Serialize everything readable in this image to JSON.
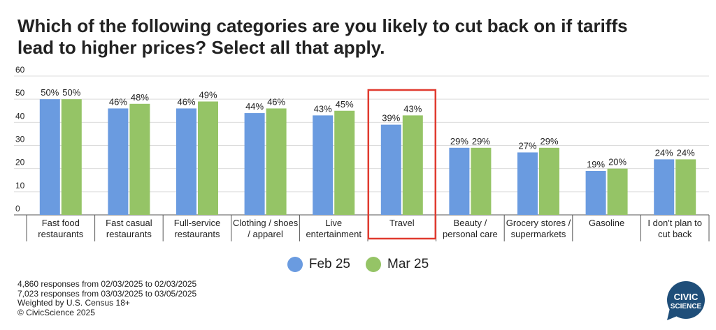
{
  "title": "Which of the following categories are you likely to cut back on if tariffs lead to higher prices? Select all that apply.",
  "chart_data": {
    "type": "bar",
    "categories": [
      [
        "Fast food",
        "restaurants"
      ],
      [
        "Fast casual",
        "restaurants"
      ],
      [
        "Full-service",
        "restaurants"
      ],
      [
        "Clothing / shoes",
        "/ apparel"
      ],
      [
        "Live",
        "entertainment"
      ],
      [
        "Travel"
      ],
      [
        "Beauty /",
        "personal care"
      ],
      [
        "Grocery stores /",
        "supermarkets"
      ],
      [
        "Gasoline"
      ],
      [
        "I don't plan to",
        "cut back"
      ]
    ],
    "series": [
      {
        "name": "Feb 25",
        "color": "#6a9be0",
        "values": [
          50,
          46,
          46,
          44,
          43,
          39,
          29,
          27,
          19,
          24
        ]
      },
      {
        "name": "Mar 25",
        "color": "#95c466",
        "values": [
          50,
          48,
          49,
          46,
          45,
          43,
          29,
          29,
          20,
          24
        ]
      }
    ],
    "value_suffix": "%",
    "ylim": [
      0,
      60
    ],
    "yticks": [
      0,
      10,
      20,
      30,
      40,
      50,
      60
    ],
    "grid": true,
    "legend_position": "bottom-center",
    "highlight_category_index": 5,
    "highlight_color": "#e03a2f"
  },
  "footnotes": [
    "4,860 responses from 02/03/2025 to 02/03/2025",
    "7,023 responses from 03/03/2025 to 03/05/2025",
    "Weighted by U.S. Census 18+",
    "© CivicScience 2025"
  ],
  "logo": {
    "line1": "CIVIC",
    "line2": "SCIENCE",
    "color": "#1f4e79"
  }
}
